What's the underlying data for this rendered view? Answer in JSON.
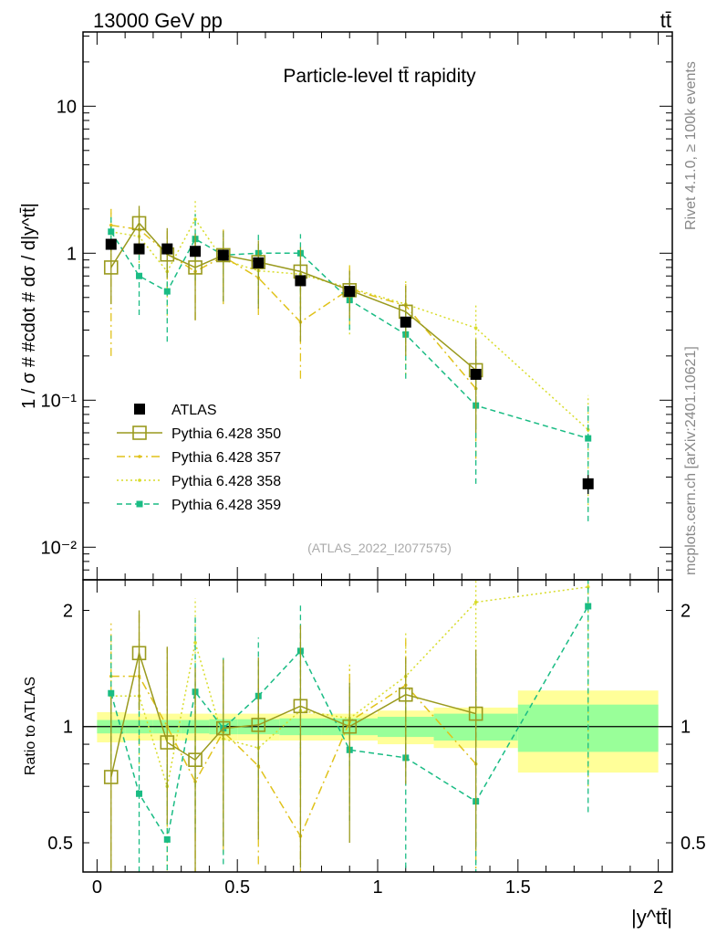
{
  "header": {
    "left": "13000 GeV pp",
    "right": "tt̄"
  },
  "side": {
    "right_top": "Rivet 4.1.0, ≥ 100k events",
    "right_bottom": "mcplots.cern.ch [arXiv:2401.10621]"
  },
  "colors": {
    "atlas": "#000000",
    "p350": "#9a9a1e",
    "p357": "#e0c21a",
    "p358": "#d8dc2a",
    "p359": "#1abc84",
    "band_inner": "#99ff99",
    "band_outer": "#ffff99"
  },
  "chart_data": [
    {
      "type": "line",
      "title": "Particle-level tt̄ rapidity",
      "watermark": "(ATLAS_2022_I2077575)",
      "ylabel": "1 / σ # #cdot # dσ / d|y^tt̄|",
      "yscale": "log",
      "xlim": [
        -0.05,
        2.05
      ],
      "ylim": [
        0.006,
        32
      ],
      "yticks": [
        {
          "value": 10,
          "label": "10"
        },
        {
          "value": 1,
          "label": "1"
        },
        {
          "value": 0.1,
          "label": "10⁻¹"
        },
        {
          "value": 0.01,
          "label": "10⁻²"
        }
      ],
      "legend_position": "lower-left",
      "x_points": [
        0.05,
        0.15,
        0.25,
        0.35,
        0.45,
        0.575,
        0.725,
        0.9,
        1.1,
        1.35,
        1.75
      ],
      "series": [
        {
          "name": "ATLAS",
          "label": "ATLAS",
          "values": [
            1.15,
            1.07,
            1.07,
            1.03,
            0.97,
            0.86,
            0.65,
            0.55,
            0.34,
            0.15,
            0.027
          ],
          "errors": [
            0.06,
            0.05,
            0.05,
            0.05,
            0.05,
            0.04,
            0.03,
            0.03,
            0.02,
            0.012,
            0.004
          ]
        },
        {
          "name": "p350",
          "label": "Pythia 6.428 350",
          "values": [
            0.8,
            1.6,
            0.98,
            0.8,
            0.97,
            0.87,
            0.75,
            0.56,
            0.4,
            0.16,
            null
          ],
          "err_lo": [
            0.35,
            0.45,
            0.3,
            0.45,
            0.5,
            0.45,
            0.5,
            0.2,
            0.2,
            0.1,
            null
          ],
          "err_hi": [
            0.45,
            0.5,
            0.5,
            0.55,
            0.45,
            0.35,
            0.35,
            0.2,
            0.2,
            0.1,
            null
          ]
        },
        {
          "name": "p357",
          "label": "Pythia 6.428 357",
          "values": [
            1.55,
            1.45,
            1.0,
            0.75,
            0.95,
            0.68,
            0.34,
            0.57,
            0.44,
            0.12,
            null
          ],
          "err_lo": [
            1.35,
            0.5,
            0.45,
            0.4,
            0.5,
            0.3,
            0.2,
            0.25,
            0.2,
            0.08,
            null
          ],
          "err_hi": [
            0.5,
            0.55,
            0.5,
            0.5,
            0.5,
            0.25,
            0.25,
            0.25,
            0.2,
            0.1,
            null
          ]
        },
        {
          "name": "p358",
          "label": "Pythia 6.428 358",
          "values": [
            1.4,
            1.3,
            0.75,
            1.7,
            0.9,
            0.76,
            0.72,
            0.58,
            0.45,
            0.31,
            0.063
          ],
          "err_lo": [
            0.5,
            0.5,
            0.4,
            1.0,
            0.3,
            0.3,
            0.3,
            0.3,
            0.3,
            0.2,
            0.045
          ],
          "err_hi": [
            0.6,
            0.5,
            0.55,
            0.6,
            0.4,
            0.4,
            0.3,
            0.25,
            0.2,
            0.15,
            0.045
          ]
        },
        {
          "name": "p359",
          "label": "Pythia 6.428 359",
          "values": [
            1.4,
            0.7,
            0.55,
            1.25,
            0.97,
            1.0,
            1.0,
            0.48,
            0.28,
            0.092,
            0.055
          ],
          "err_lo": [
            0.35,
            0.32,
            0.3,
            0.6,
            0.5,
            0.55,
            0.6,
            0.18,
            0.14,
            0.065,
            0.04
          ],
          "err_hi": [
            0.4,
            0.45,
            0.3,
            0.6,
            0.4,
            0.35,
            0.35,
            0.2,
            0.12,
            0.14,
            0.04
          ]
        }
      ]
    },
    {
      "type": "line",
      "title": "",
      "ylabel": "Ratio to ATLAS",
      "xlabel": "|y^tt̄|",
      "yscale": "log",
      "xlim": [
        -0.05,
        2.05
      ],
      "ylim": [
        0.42,
        2.4
      ],
      "xticks": [
        {
          "value": 0,
          "label": "0"
        },
        {
          "value": 0.5,
          "label": "0.5"
        },
        {
          "value": 1,
          "label": "1"
        },
        {
          "value": 1.5,
          "label": "1.5"
        },
        {
          "value": 2,
          "label": "2"
        }
      ],
      "yticks": [
        {
          "value": 2,
          "label": "2"
        },
        {
          "value": 1,
          "label": "1"
        },
        {
          "value": 0.5,
          "label": "0.5"
        }
      ],
      "bands": {
        "bins": [
          [
            0,
            0.1
          ],
          [
            0.1,
            0.2
          ],
          [
            0.2,
            0.3
          ],
          [
            0.3,
            0.4
          ],
          [
            0.4,
            0.5
          ],
          [
            0.5,
            0.65
          ],
          [
            0.65,
            0.8
          ],
          [
            0.8,
            1.0
          ],
          [
            1.0,
            1.2
          ],
          [
            1.2,
            1.5
          ],
          [
            1.5,
            2.0
          ]
        ],
        "inner": [
          0.04,
          0.04,
          0.04,
          0.04,
          0.045,
          0.045,
          0.05,
          0.05,
          0.06,
          0.08,
          0.14
        ],
        "outer": [
          0.09,
          0.08,
          0.08,
          0.08,
          0.08,
          0.08,
          0.08,
          0.08,
          0.1,
          0.12,
          0.24
        ]
      },
      "series": [
        {
          "name": "p350",
          "values": [
            0.74,
            1.55,
            0.91,
            0.82,
            0.99,
            1.01,
            1.13,
            1.0,
            1.21,
            1.08,
            null
          ],
          "err_lo": [
            0.35,
            0.45,
            0.35,
            0.44,
            0.5,
            0.5,
            0.7,
            0.5,
            0.5,
            0.6,
            null
          ],
          "err_hi": [
            0.45,
            0.45,
            0.7,
            0.6,
            0.5,
            0.5,
            0.7,
            0.3,
            0.3,
            0.5,
            null
          ]
        },
        {
          "name": "p357",
          "values": [
            1.35,
            1.35,
            1.0,
            0.72,
            0.97,
            0.79,
            0.52,
            1.03,
            1.28,
            0.8,
            null
          ],
          "err_lo": [
            1.0,
            0.45,
            0.45,
            0.35,
            0.5,
            0.35,
            0.25,
            0.4,
            0.5,
            0.4,
            null
          ],
          "err_hi": [
            0.5,
            0.6,
            0.6,
            0.5,
            0.5,
            0.5,
            0.4,
            0.4,
            0.4,
            0.5,
            null
          ]
        },
        {
          "name": "p358",
          "values": [
            1.2,
            1.2,
            0.7,
            1.65,
            0.93,
            0.88,
            1.1,
            1.05,
            1.35,
            2.1,
            2.3
          ],
          "err_lo": [
            0.4,
            0.4,
            0.35,
            0.8,
            0.35,
            0.35,
            0.4,
            0.4,
            0.5,
            1.0,
            1.6
          ],
          "err_hi": [
            0.5,
            0.5,
            0.6,
            0.5,
            0.4,
            0.4,
            0.4,
            0.4,
            0.4,
            0.5,
            0.5
          ]
        },
        {
          "name": "p359",
          "values": [
            1.22,
            0.67,
            0.51,
            1.23,
            0.99,
            1.2,
            1.57,
            0.87,
            0.83,
            0.64,
            2.05
          ],
          "err_lo": [
            0.4,
            0.35,
            0.25,
            0.7,
            0.55,
            0.6,
            0.9,
            0.3,
            0.4,
            0.4,
            1.45
          ],
          "err_hi": [
            0.5,
            0.5,
            0.3,
            0.7,
            0.55,
            0.5,
            0.5,
            0.4,
            0.4,
            0.8,
            0.6
          ]
        }
      ]
    }
  ]
}
